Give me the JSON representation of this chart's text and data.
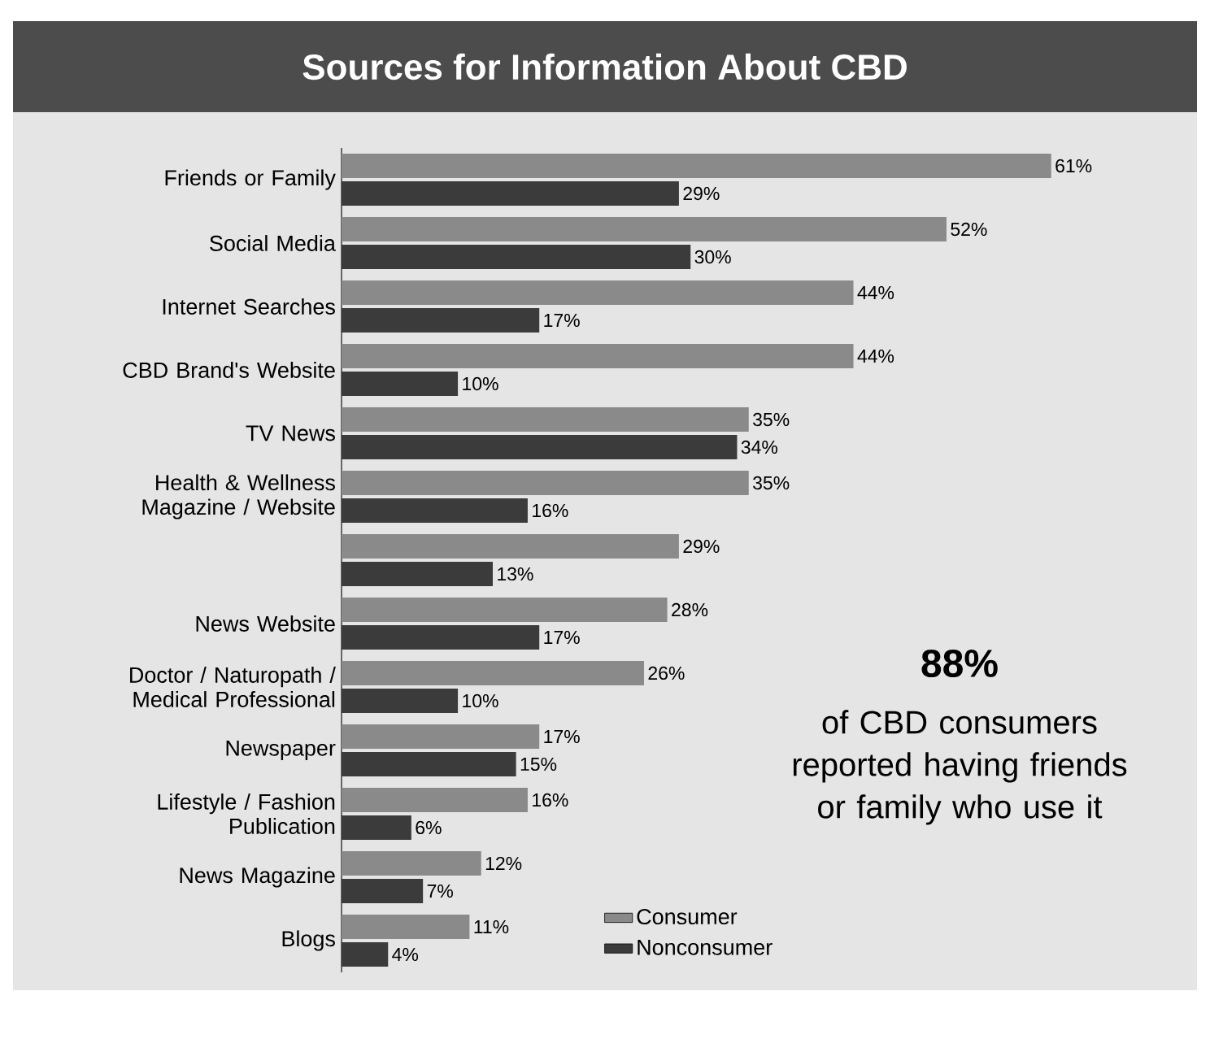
{
  "chart_data": {
    "type": "bar",
    "orientation": "horizontal",
    "title": "Sources for Information About CBD",
    "categories": [
      "Friends or Family",
      "Social Media",
      "Internet Searches",
      "CBD Brand's Website",
      "TV News",
      "Health & Wellness Magazine / Website",
      null,
      "News Website",
      "Doctor / Naturopath / Medical Professional",
      "Newspaper",
      "Lifestyle / Fashion Publication",
      "News Magazine",
      "Blogs"
    ],
    "series": [
      {
        "name": "Consumer",
        "color": "#8a8a8a",
        "values": [
          61,
          52,
          44,
          44,
          35,
          35,
          29,
          28,
          26,
          17,
          16,
          12,
          11
        ],
        "value_labels": [
          "61%",
          "52%",
          "44%",
          "44%",
          "35%",
          "35%",
          "29%",
          "28%",
          "26%",
          "17%",
          "16%",
          "12%",
          "11%"
        ]
      },
      {
        "name": "Nonconsumer",
        "color": "#3b3b3b",
        "values": [
          29,
          30,
          17,
          10,
          34,
          16,
          13,
          17,
          10,
          15,
          6,
          7,
          4
        ],
        "value_labels": [
          "29%",
          "30%",
          "17%",
          "10%",
          "34%",
          "16%",
          "13%",
          "17%",
          "10%",
          "15%",
          "6%",
          "7%",
          "4%"
        ]
      }
    ],
    "legend": "bottom",
    "annotations": [
      "88%",
      "of CBD consumers reported having friends or family who use it"
    ]
  }
}
